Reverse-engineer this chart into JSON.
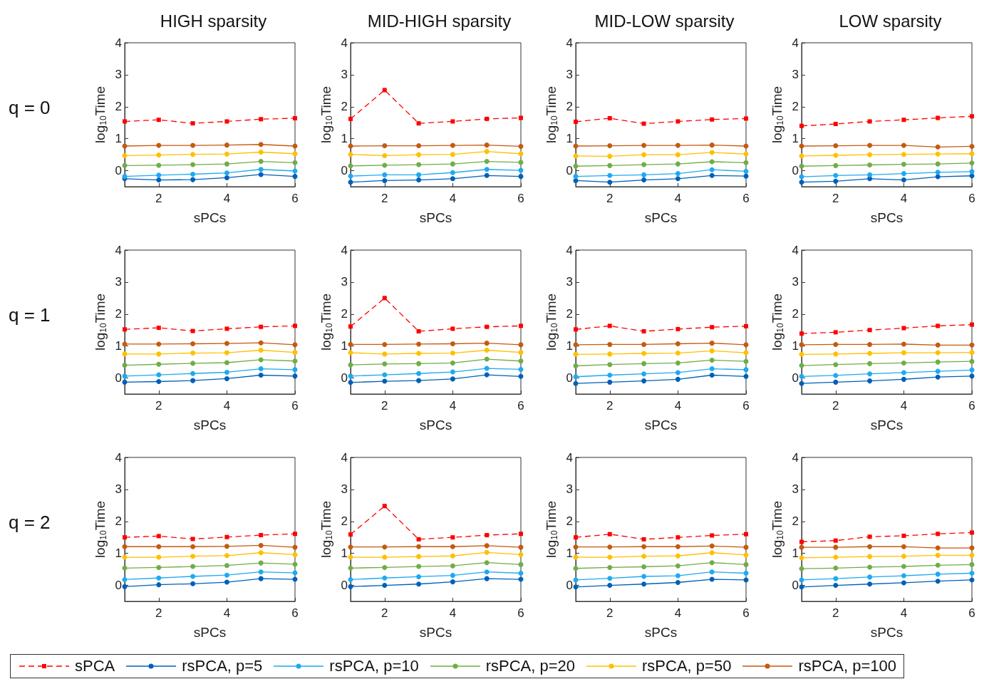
{
  "chart_data": [
    {
      "type": "line",
      "title": "HIGH sparsity",
      "annotations": [
        "q = 0"
      ],
      "xlabel": "sPCs",
      "ylabel": "log$_{10}$Time",
      "x": [
        1,
        2,
        3,
        4,
        5,
        6
      ],
      "xlim": [
        1,
        6
      ],
      "xticks": [
        2,
        4,
        6
      ],
      "ylim": [
        -0.5,
        4
      ],
      "yticks": [
        0,
        1,
        2,
        3,
        4
      ],
      "legend": "bottom",
      "series": [
        {
          "name": "sPCA",
          "color": "#ff0000",
          "marker": "square",
          "line_style": "dashed",
          "values": [
            1.54,
            1.59,
            1.48,
            1.54,
            1.61,
            1.64
          ]
        },
        {
          "name": "rsPCA,  p=5",
          "color": "#0060b8",
          "marker": "circle",
          "line_style": "solid",
          "values": [
            -0.25,
            -0.29,
            -0.28,
            -0.22,
            -0.12,
            -0.18
          ]
        },
        {
          "name": "rsPCA,  p=10",
          "color": "#1eaaf0",
          "marker": "circle",
          "line_style": "solid",
          "values": [
            -0.18,
            -0.14,
            -0.11,
            -0.07,
            0.04,
            -0.01
          ]
        },
        {
          "name": "rsPCA,  p=20",
          "color": "#70ad47",
          "marker": "circle",
          "line_style": "solid",
          "values": [
            0.16,
            0.17,
            0.19,
            0.21,
            0.29,
            0.25
          ]
        },
        {
          "name": "rsPCA,  p=50",
          "color": "#ffc000",
          "marker": "circle",
          "line_style": "solid",
          "values": [
            0.47,
            0.49,
            0.51,
            0.52,
            0.58,
            0.53
          ]
        },
        {
          "name": "rsPCA,  p=100",
          "color": "#c55a11",
          "marker": "circle",
          "line_style": "solid",
          "values": [
            0.77,
            0.79,
            0.79,
            0.8,
            0.82,
            0.77
          ]
        }
      ]
    },
    {
      "type": "line",
      "title": "MID-HIGH sparsity",
      "xlabel": "sPCs",
      "ylabel": "log$_{10}$Time",
      "x": [
        1,
        2,
        3,
        4,
        5,
        6
      ],
      "xlim": [
        1,
        6
      ],
      "xticks": [
        2,
        4,
        6
      ],
      "ylim": [
        -0.5,
        4
      ],
      "yticks": [
        0,
        1,
        2,
        3,
        4
      ],
      "legend": "bottom",
      "series": [
        {
          "name": "sPCA",
          "color": "#ff0000",
          "marker": "square",
          "line_style": "dashed",
          "values": [
            1.62,
            2.52,
            1.48,
            1.54,
            1.62,
            1.65
          ]
        },
        {
          "name": "rsPCA,  p=5",
          "color": "#0060b8",
          "marker": "circle",
          "line_style": "solid",
          "values": [
            -0.36,
            -0.31,
            -0.29,
            -0.25,
            -0.15,
            -0.18
          ]
        },
        {
          "name": "rsPCA,  p=10",
          "color": "#1eaaf0",
          "marker": "circle",
          "line_style": "solid",
          "values": [
            -0.17,
            -0.13,
            -0.13,
            -0.06,
            0.04,
            0.01
          ]
        },
        {
          "name": "rsPCA,  p=20",
          "color": "#70ad47",
          "marker": "circle",
          "line_style": "solid",
          "values": [
            0.15,
            0.17,
            0.19,
            0.21,
            0.29,
            0.26
          ]
        },
        {
          "name": "rsPCA,  p=50",
          "color": "#ffc000",
          "marker": "circle",
          "line_style": "solid",
          "values": [
            0.51,
            0.47,
            0.5,
            0.51,
            0.6,
            0.53
          ]
        },
        {
          "name": "rsPCA,  p=100",
          "color": "#c55a11",
          "marker": "circle",
          "line_style": "solid",
          "values": [
            0.77,
            0.78,
            0.78,
            0.79,
            0.8,
            0.76
          ]
        }
      ]
    },
    {
      "type": "line",
      "title": "MID-LOW sparsity",
      "xlabel": "sPCs",
      "ylabel": "log$_{10}$Time",
      "x": [
        1,
        2,
        3,
        4,
        5,
        6
      ],
      "xlim": [
        1,
        6
      ],
      "xticks": [
        2,
        4,
        6
      ],
      "ylim": [
        -0.5,
        4
      ],
      "yticks": [
        0,
        1,
        2,
        3,
        4
      ],
      "legend": "bottom",
      "series": [
        {
          "name": "sPCA",
          "color": "#ff0000",
          "marker": "square",
          "line_style": "dashed",
          "values": [
            1.53,
            1.64,
            1.47,
            1.54,
            1.6,
            1.63
          ]
        },
        {
          "name": "rsPCA,  p=5",
          "color": "#0060b8",
          "marker": "circle",
          "line_style": "solid",
          "values": [
            -0.31,
            -0.36,
            -0.29,
            -0.25,
            -0.15,
            -0.17
          ]
        },
        {
          "name": "rsPCA,  p=10",
          "color": "#1eaaf0",
          "marker": "circle",
          "line_style": "solid",
          "values": [
            -0.18,
            -0.15,
            -0.13,
            -0.09,
            0.03,
            -0.02
          ]
        },
        {
          "name": "rsPCA,  p=20",
          "color": "#70ad47",
          "marker": "circle",
          "line_style": "solid",
          "values": [
            0.14,
            0.16,
            0.19,
            0.21,
            0.28,
            0.25
          ]
        },
        {
          "name": "rsPCA,  p=50",
          "color": "#ffc000",
          "marker": "circle",
          "line_style": "solid",
          "values": [
            0.46,
            0.45,
            0.5,
            0.5,
            0.57,
            0.52
          ]
        },
        {
          "name": "rsPCA,  p=100",
          "color": "#c55a11",
          "marker": "circle",
          "line_style": "solid",
          "values": [
            0.77,
            0.78,
            0.79,
            0.79,
            0.8,
            0.77
          ]
        }
      ]
    },
    {
      "type": "line",
      "title": "LOW sparsity",
      "xlabel": "sPCs",
      "ylabel": "log$_{10}$Time",
      "x": [
        1,
        2,
        3,
        4,
        5,
        6
      ],
      "xlim": [
        1,
        6
      ],
      "xticks": [
        2,
        4,
        6
      ],
      "ylim": [
        -0.5,
        4
      ],
      "yticks": [
        0,
        1,
        2,
        3,
        4
      ],
      "legend": "bottom",
      "series": [
        {
          "name": "sPCA",
          "color": "#ff0000",
          "marker": "square",
          "line_style": "dashed",
          "values": [
            1.4,
            1.46,
            1.54,
            1.59,
            1.65,
            1.7
          ]
        },
        {
          "name": "rsPCA,  p=5",
          "color": "#0060b8",
          "marker": "circle",
          "line_style": "solid",
          "values": [
            -0.36,
            -0.33,
            -0.25,
            -0.29,
            -0.19,
            -0.16
          ]
        },
        {
          "name": "rsPCA,  p=10",
          "color": "#1eaaf0",
          "marker": "circle",
          "line_style": "solid",
          "values": [
            -0.19,
            -0.15,
            -0.13,
            -0.09,
            -0.05,
            -0.03
          ]
        },
        {
          "name": "rsPCA,  p=20",
          "color": "#70ad47",
          "marker": "circle",
          "line_style": "solid",
          "values": [
            0.14,
            0.16,
            0.18,
            0.2,
            0.21,
            0.24
          ]
        },
        {
          "name": "rsPCA,  p=50",
          "color": "#ffc000",
          "marker": "circle",
          "line_style": "solid",
          "values": [
            0.46,
            0.48,
            0.5,
            0.51,
            0.52,
            0.53
          ]
        },
        {
          "name": "rsPCA,  p=100",
          "color": "#c55a11",
          "marker": "circle",
          "line_style": "solid",
          "values": [
            0.77,
            0.78,
            0.79,
            0.79,
            0.74,
            0.76
          ]
        }
      ]
    },
    {
      "type": "line",
      "annotations": [
        "q = 1"
      ],
      "xlabel": "sPCs",
      "ylabel": "log$_{10}$Time",
      "x": [
        1,
        2,
        3,
        4,
        5,
        6
      ],
      "xlim": [
        1,
        6
      ],
      "xticks": [
        2,
        4,
        6
      ],
      "ylim": [
        -0.5,
        4
      ],
      "yticks": [
        0,
        1,
        2,
        3,
        4
      ],
      "legend": "bottom",
      "series": [
        {
          "name": "sPCA",
          "color": "#ff0000",
          "marker": "square",
          "line_style": "dashed",
          "values": [
            1.52,
            1.57,
            1.47,
            1.54,
            1.6,
            1.63
          ]
        },
        {
          "name": "rsPCA,  p=5",
          "color": "#0060b8",
          "marker": "circle",
          "line_style": "solid",
          "values": [
            -0.13,
            -0.11,
            -0.08,
            -0.02,
            0.09,
            0.06
          ]
        },
        {
          "name": "rsPCA,  p=10",
          "color": "#1eaaf0",
          "marker": "circle",
          "line_style": "solid",
          "values": [
            0.06,
            0.1,
            0.14,
            0.18,
            0.29,
            0.26
          ]
        },
        {
          "name": "rsPCA,  p=20",
          "color": "#70ad47",
          "marker": "circle",
          "line_style": "solid",
          "values": [
            0.4,
            0.43,
            0.46,
            0.48,
            0.57,
            0.53
          ]
        },
        {
          "name": "rsPCA,  p=50",
          "color": "#ffc000",
          "marker": "circle",
          "line_style": "solid",
          "values": [
            0.75,
            0.75,
            0.78,
            0.79,
            0.87,
            0.8
          ]
        },
        {
          "name": "rsPCA,  p=100",
          "color": "#c55a11",
          "marker": "circle",
          "line_style": "solid",
          "values": [
            1.06,
            1.06,
            1.07,
            1.08,
            1.1,
            1.04
          ]
        }
      ]
    },
    {
      "type": "line",
      "xlabel": "sPCs",
      "ylabel": "log$_{10}$Time",
      "x": [
        1,
        2,
        3,
        4,
        5,
        6
      ],
      "xlim": [
        1,
        6
      ],
      "xticks": [
        2,
        4,
        6
      ],
      "ylim": [
        -0.5,
        4
      ],
      "yticks": [
        0,
        1,
        2,
        3,
        4
      ],
      "legend": "bottom",
      "series": [
        {
          "name": "sPCA",
          "color": "#ff0000",
          "marker": "square",
          "line_style": "dashed",
          "values": [
            1.61,
            2.5,
            1.46,
            1.54,
            1.6,
            1.63
          ]
        },
        {
          "name": "rsPCA,  p=5",
          "color": "#0060b8",
          "marker": "circle",
          "line_style": "solid",
          "values": [
            -0.14,
            -0.1,
            -0.08,
            -0.03,
            0.1,
            0.05
          ]
        },
        {
          "name": "rsPCA,  p=10",
          "color": "#1eaaf0",
          "marker": "circle",
          "line_style": "solid",
          "values": [
            0.06,
            0.1,
            0.14,
            0.19,
            0.3,
            0.27
          ]
        },
        {
          "name": "rsPCA,  p=20",
          "color": "#70ad47",
          "marker": "circle",
          "line_style": "solid",
          "values": [
            0.41,
            0.44,
            0.45,
            0.47,
            0.59,
            0.53
          ]
        },
        {
          "name": "rsPCA,  p=50",
          "color": "#ffc000",
          "marker": "circle",
          "line_style": "solid",
          "values": [
            0.79,
            0.75,
            0.77,
            0.78,
            0.87,
            0.8
          ]
        },
        {
          "name": "rsPCA,  p=100",
          "color": "#c55a11",
          "marker": "circle",
          "line_style": "solid",
          "values": [
            1.05,
            1.05,
            1.06,
            1.07,
            1.09,
            1.04
          ]
        }
      ]
    },
    {
      "type": "line",
      "xlabel": "sPCs",
      "ylabel": "log$_{10}$Time",
      "x": [
        1,
        2,
        3,
        4,
        5,
        6
      ],
      "xlim": [
        1,
        6
      ],
      "xticks": [
        2,
        4,
        6
      ],
      "ylim": [
        -0.5,
        4
      ],
      "yticks": [
        0,
        1,
        2,
        3,
        4
      ],
      "legend": "bottom",
      "series": [
        {
          "name": "sPCA",
          "color": "#ff0000",
          "marker": "square",
          "line_style": "dashed",
          "values": [
            1.52,
            1.63,
            1.46,
            1.53,
            1.59,
            1.62
          ]
        },
        {
          "name": "rsPCA,  p=5",
          "color": "#0060b8",
          "marker": "circle",
          "line_style": "solid",
          "values": [
            -0.17,
            -0.13,
            -0.09,
            -0.04,
            0.09,
            0.05
          ]
        },
        {
          "name": "rsPCA,  p=10",
          "color": "#1eaaf0",
          "marker": "circle",
          "line_style": "solid",
          "values": [
            0.04,
            0.09,
            0.13,
            0.17,
            0.29,
            0.26
          ]
        },
        {
          "name": "rsPCA,  p=20",
          "color": "#70ad47",
          "marker": "circle",
          "line_style": "solid",
          "values": [
            0.38,
            0.42,
            0.45,
            0.47,
            0.56,
            0.52
          ]
        },
        {
          "name": "rsPCA,  p=50",
          "color": "#ffc000",
          "marker": "circle",
          "line_style": "solid",
          "values": [
            0.74,
            0.75,
            0.77,
            0.78,
            0.85,
            0.79
          ]
        },
        {
          "name": "rsPCA,  p=100",
          "color": "#c55a11",
          "marker": "circle",
          "line_style": "solid",
          "values": [
            1.04,
            1.05,
            1.05,
            1.07,
            1.09,
            1.04
          ]
        }
      ]
    },
    {
      "type": "line",
      "xlabel": "sPCs",
      "ylabel": "log$_{10}$Time",
      "x": [
        1,
        2,
        3,
        4,
        5,
        6
      ],
      "xlim": [
        1,
        6
      ],
      "xticks": [
        2,
        4,
        6
      ],
      "ylim": [
        -0.5,
        4
      ],
      "yticks": [
        0,
        1,
        2,
        3,
        4
      ],
      "legend": "bottom",
      "series": [
        {
          "name": "sPCA",
          "color": "#ff0000",
          "marker": "square",
          "line_style": "dashed",
          "values": [
            1.39,
            1.43,
            1.5,
            1.56,
            1.63,
            1.67
          ]
        },
        {
          "name": "rsPCA,  p=5",
          "color": "#0060b8",
          "marker": "circle",
          "line_style": "solid",
          "values": [
            -0.17,
            -0.13,
            -0.09,
            -0.04,
            0.03,
            0.06
          ]
        },
        {
          "name": "rsPCA,  p=10",
          "color": "#1eaaf0",
          "marker": "circle",
          "line_style": "solid",
          "values": [
            0.05,
            0.08,
            0.13,
            0.17,
            0.21,
            0.25
          ]
        },
        {
          "name": "rsPCA,  p=20",
          "color": "#70ad47",
          "marker": "circle",
          "line_style": "solid",
          "values": [
            0.39,
            0.42,
            0.45,
            0.47,
            0.5,
            0.52
          ]
        },
        {
          "name": "rsPCA,  p=50",
          "color": "#ffc000",
          "marker": "circle",
          "line_style": "solid",
          "values": [
            0.74,
            0.75,
            0.77,
            0.79,
            0.79,
            0.8
          ]
        },
        {
          "name": "rsPCA,  p=100",
          "color": "#c55a11",
          "marker": "circle",
          "line_style": "solid",
          "values": [
            1.04,
            1.05,
            1.05,
            1.06,
            1.03,
            1.03
          ]
        }
      ]
    },
    {
      "type": "line",
      "annotations": [
        "q = 2"
      ],
      "xlabel": "sPCs",
      "ylabel": "log$_{10}$Time",
      "x": [
        1,
        2,
        3,
        4,
        5,
        6
      ],
      "xlim": [
        1,
        6
      ],
      "xticks": [
        2,
        4,
        6
      ],
      "ylim": [
        -0.5,
        4
      ],
      "yticks": [
        0,
        1,
        2,
        3,
        4
      ],
      "legend": "bottom",
      "series": [
        {
          "name": "sPCA",
          "color": "#ff0000",
          "marker": "square",
          "line_style": "dashed",
          "values": [
            1.5,
            1.54,
            1.45,
            1.51,
            1.57,
            1.61
          ]
        },
        {
          "name": "rsPCA,  p=5",
          "color": "#0060b8",
          "marker": "circle",
          "line_style": "solid",
          "values": [
            -0.04,
            0.02,
            0.05,
            0.1,
            0.21,
            0.19
          ]
        },
        {
          "name": "rsPCA,  p=10",
          "color": "#1eaaf0",
          "marker": "circle",
          "line_style": "solid",
          "values": [
            0.18,
            0.23,
            0.28,
            0.32,
            0.42,
            0.39
          ]
        },
        {
          "name": "rsPCA,  p=20",
          "color": "#70ad47",
          "marker": "circle",
          "line_style": "solid",
          "values": [
            0.54,
            0.56,
            0.59,
            0.62,
            0.7,
            0.66
          ]
        },
        {
          "name": "rsPCA,  p=50",
          "color": "#ffc000",
          "marker": "circle",
          "line_style": "solid",
          "values": [
            0.88,
            0.88,
            0.91,
            0.93,
            1.02,
            0.96
          ]
        },
        {
          "name": "rsPCA,  p=100",
          "color": "#c55a11",
          "marker": "circle",
          "line_style": "solid",
          "values": [
            1.21,
            1.21,
            1.21,
            1.22,
            1.25,
            1.19
          ]
        }
      ]
    },
    {
      "type": "line",
      "xlabel": "sPCs",
      "ylabel": "log$_{10}$Time",
      "x": [
        1,
        2,
        3,
        4,
        5,
        6
      ],
      "xlim": [
        1,
        6
      ],
      "xticks": [
        2,
        4,
        6
      ],
      "ylim": [
        -0.5,
        4
      ],
      "yticks": [
        0,
        1,
        2,
        3,
        4
      ],
      "legend": "bottom",
      "series": [
        {
          "name": "sPCA",
          "color": "#ff0000",
          "marker": "square",
          "line_style": "dashed",
          "values": [
            1.59,
            2.48,
            1.44,
            1.5,
            1.57,
            1.61
          ]
        },
        {
          "name": "rsPCA,  p=5",
          "color": "#0060b8",
          "marker": "circle",
          "line_style": "solid",
          "values": [
            -0.04,
            0.0,
            0.04,
            0.11,
            0.21,
            0.19
          ]
        },
        {
          "name": "rsPCA,  p=10",
          "color": "#1eaaf0",
          "marker": "circle",
          "line_style": "solid",
          "values": [
            0.18,
            0.23,
            0.27,
            0.31,
            0.42,
            0.38
          ]
        },
        {
          "name": "rsPCA,  p=20",
          "color": "#70ad47",
          "marker": "circle",
          "line_style": "solid",
          "values": [
            0.54,
            0.56,
            0.59,
            0.61,
            0.71,
            0.65
          ]
        },
        {
          "name": "rsPCA,  p=50",
          "color": "#ffc000",
          "marker": "circle",
          "line_style": "solid",
          "values": [
            0.88,
            0.88,
            0.9,
            0.92,
            1.03,
            0.96
          ]
        },
        {
          "name": "rsPCA,  p=100",
          "color": "#c55a11",
          "marker": "circle",
          "line_style": "solid",
          "values": [
            1.2,
            1.2,
            1.21,
            1.21,
            1.24,
            1.19
          ]
        }
      ]
    },
    {
      "type": "line",
      "xlabel": "sPCs",
      "ylabel": "log$_{10}$Time",
      "x": [
        1,
        2,
        3,
        4,
        5,
        6
      ],
      "xlim": [
        1,
        6
      ],
      "xticks": [
        2,
        4,
        6
      ],
      "ylim": [
        -0.5,
        4
      ],
      "yticks": [
        0,
        1,
        2,
        3,
        4
      ],
      "legend": "bottom",
      "series": [
        {
          "name": "sPCA",
          "color": "#ff0000",
          "marker": "square",
          "line_style": "dashed",
          "values": [
            1.5,
            1.6,
            1.44,
            1.5,
            1.56,
            1.6
          ]
        },
        {
          "name": "rsPCA,  p=5",
          "color": "#0060b8",
          "marker": "circle",
          "line_style": "solid",
          "values": [
            -0.05,
            0.0,
            0.04,
            0.09,
            0.19,
            0.17
          ]
        },
        {
          "name": "rsPCA,  p=10",
          "color": "#1eaaf0",
          "marker": "circle",
          "line_style": "solid",
          "values": [
            0.17,
            0.22,
            0.28,
            0.3,
            0.42,
            0.38
          ]
        },
        {
          "name": "rsPCA,  p=20",
          "color": "#70ad47",
          "marker": "circle",
          "line_style": "solid",
          "values": [
            0.53,
            0.56,
            0.58,
            0.61,
            0.71,
            0.65
          ]
        },
        {
          "name": "rsPCA,  p=50",
          "color": "#ffc000",
          "marker": "circle",
          "line_style": "solid",
          "values": [
            0.88,
            0.88,
            0.91,
            0.92,
            1.02,
            0.95
          ]
        },
        {
          "name": "rsPCA,  p=100",
          "color": "#c55a11",
          "marker": "circle",
          "line_style": "solid",
          "values": [
            1.2,
            1.2,
            1.21,
            1.21,
            1.23,
            1.19
          ]
        }
      ]
    },
    {
      "type": "line",
      "xlabel": "sPCs",
      "ylabel": "log$_{10}$Time",
      "x": [
        1,
        2,
        3,
        4,
        5,
        6
      ],
      "xlim": [
        1,
        6
      ],
      "xticks": [
        2,
        4,
        6
      ],
      "ylim": [
        -0.5,
        4
      ],
      "yticks": [
        0,
        1,
        2,
        3,
        4
      ],
      "legend": "bottom",
      "series": [
        {
          "name": "sPCA",
          "color": "#ff0000",
          "marker": "square",
          "line_style": "dashed",
          "values": [
            1.36,
            1.4,
            1.52,
            1.55,
            1.61,
            1.65
          ]
        },
        {
          "name": "rsPCA,  p=5",
          "color": "#0060b8",
          "marker": "circle",
          "line_style": "solid",
          "values": [
            -0.05,
            0.0,
            0.04,
            0.08,
            0.13,
            0.17
          ]
        },
        {
          "name": "rsPCA,  p=10",
          "color": "#1eaaf0",
          "marker": "circle",
          "line_style": "solid",
          "values": [
            0.17,
            0.21,
            0.26,
            0.3,
            0.35,
            0.38
          ]
        },
        {
          "name": "rsPCA,  p=20",
          "color": "#70ad47",
          "marker": "circle",
          "line_style": "solid",
          "values": [
            0.52,
            0.54,
            0.57,
            0.59,
            0.63,
            0.65
          ]
        },
        {
          "name": "rsPCA,  p=50",
          "color": "#ffc000",
          "marker": "circle",
          "line_style": "solid",
          "values": [
            0.86,
            0.88,
            0.9,
            0.91,
            0.94,
            0.94
          ]
        },
        {
          "name": "rsPCA,  p=100",
          "color": "#c55a11",
          "marker": "circle",
          "line_style": "solid",
          "values": [
            1.19,
            1.19,
            1.21,
            1.21,
            1.17,
            1.17
          ]
        }
      ]
    }
  ]
}
